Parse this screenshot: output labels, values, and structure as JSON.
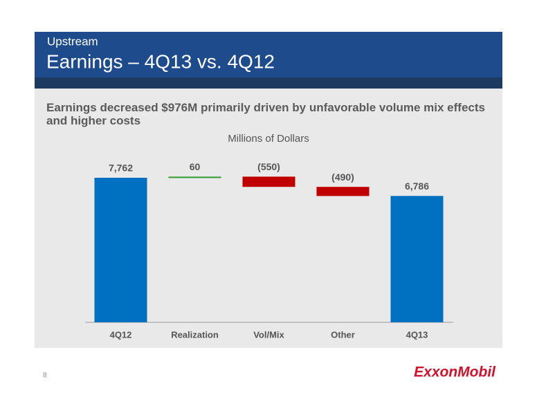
{
  "slide": {
    "section": "Upstream",
    "title": "Earnings – 4Q13 vs. 4Q12",
    "headline": "Earnings decreased $976M primarily driven by unfavorable volume mix effects and higher costs",
    "page": "8",
    "logo": "ExxonMobil"
  },
  "chart_data": {
    "type": "waterfall",
    "subtitle": "Millions of Dollars",
    "categories": [
      "4Q12",
      "Realization",
      "Vol/Mix",
      "Other",
      "4Q13"
    ],
    "values": [
      7762,
      60,
      -550,
      -490,
      6786
    ],
    "value_labels": [
      "7,762",
      "60",
      "(550)",
      "(490)",
      "6,786"
    ],
    "total_color": "#0070c0",
    "increase_color": "#2e9a2e",
    "decrease_color": "#c00000"
  }
}
